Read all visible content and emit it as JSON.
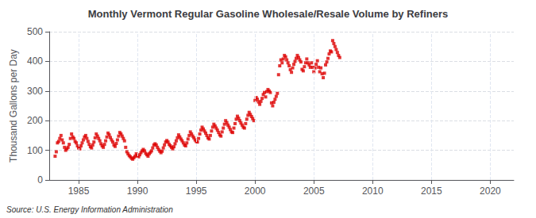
{
  "chart_data": {
    "type": "scatter",
    "title": "Monthly Vermont Regular Gasoline Wholesale/Resale Volume by Refiners",
    "ylabel": "Thousand Gallons per Day",
    "annotations": [
      "Source: U.S. Energy Information Administration"
    ],
    "color": "#dd0000",
    "marker": "square",
    "grid": true,
    "xlim": [
      1982.5,
      2022
    ],
    "ylim": [
      0,
      500
    ],
    "xticks": [
      1985,
      1990,
      1995,
      2000,
      2005,
      2010,
      2015,
      2020
    ],
    "yticks": [
      0,
      100,
      200,
      300,
      400,
      500
    ],
    "x": [
      1983.0,
      1983.1,
      1983.2,
      1983.3,
      1983.4,
      1983.5,
      1983.6,
      1983.7,
      1983.8,
      1983.9,
      1984.0,
      1984.1,
      1984.2,
      1984.3,
      1984.4,
      1984.5,
      1984.6,
      1984.7,
      1984.8,
      1984.9,
      1985.0,
      1985.1,
      1985.2,
      1985.3,
      1985.4,
      1985.5,
      1985.6,
      1985.7,
      1985.8,
      1985.9,
      1986.0,
      1986.1,
      1986.2,
      1986.3,
      1986.4,
      1986.5,
      1986.6,
      1986.7,
      1986.8,
      1986.9,
      1987.0,
      1987.1,
      1987.2,
      1987.3,
      1987.4,
      1987.5,
      1987.6,
      1987.7,
      1987.8,
      1987.9,
      1988.0,
      1988.1,
      1988.2,
      1988.3,
      1988.4,
      1988.5,
      1988.6,
      1988.7,
      1988.8,
      1988.9,
      1989.0,
      1989.1,
      1989.2,
      1989.3,
      1989.4,
      1989.5,
      1989.6,
      1989.7,
      1989.8,
      1989.9,
      1990.0,
      1990.1,
      1990.2,
      1990.3,
      1990.4,
      1990.5,
      1990.6,
      1990.7,
      1990.8,
      1990.9,
      1991.0,
      1991.1,
      1991.2,
      1991.3,
      1991.4,
      1991.5,
      1991.6,
      1991.7,
      1991.8,
      1991.9,
      1992.0,
      1992.1,
      1992.2,
      1992.3,
      1992.4,
      1992.5,
      1992.6,
      1992.7,
      1992.8,
      1992.9,
      1993.0,
      1993.1,
      1993.2,
      1993.3,
      1993.4,
      1993.5,
      1993.6,
      1993.7,
      1993.8,
      1993.9,
      1994.0,
      1994.1,
      1994.2,
      1994.3,
      1994.4,
      1994.5,
      1994.6,
      1994.7,
      1994.8,
      1994.9,
      1995.0,
      1995.1,
      1995.2,
      1995.3,
      1995.4,
      1995.5,
      1995.6,
      1995.7,
      1995.8,
      1995.9,
      1996.0,
      1996.1,
      1996.2,
      1996.3,
      1996.4,
      1996.5,
      1996.6,
      1996.7,
      1996.8,
      1996.9,
      1997.0,
      1997.1,
      1997.2,
      1997.3,
      1997.4,
      1997.5,
      1997.6,
      1997.7,
      1997.8,
      1997.9,
      1998.0,
      1998.1,
      1998.2,
      1998.3,
      1998.4,
      1998.5,
      1998.6,
      1998.7,
      1998.8,
      1998.9,
      1999.0,
      1999.1,
      1999.2,
      1999.3,
      1999.4,
      1999.5,
      1999.6,
      1999.7,
      1999.8,
      1999.9,
      2000.0,
      2000.1,
      2000.2,
      2000.3,
      2000.4,
      2000.5,
      2000.6,
      2000.7,
      2000.8,
      2000.9,
      2001.0,
      2001.1,
      2001.2,
      2001.3,
      2001.4,
      2001.5,
      2001.6,
      2001.7,
      2001.8,
      2001.9,
      2002.0,
      2002.1,
      2002.2,
      2002.3,
      2002.4,
      2002.5,
      2002.6,
      2002.7,
      2002.8,
      2002.9,
      2003.0,
      2003.1,
      2003.2,
      2003.3,
      2003.4,
      2003.5,
      2003.6,
      2003.7,
      2003.8,
      2003.9,
      2004.0,
      2004.1,
      2004.2,
      2004.3,
      2004.4,
      2004.5,
      2004.6,
      2004.7,
      2004.8,
      2004.9,
      2005.0,
      2005.1,
      2005.2,
      2005.3,
      2005.4,
      2005.5,
      2005.6,
      2005.7,
      2005.8,
      2005.9,
      2006.0,
      2006.1,
      2006.2,
      2006.3,
      2006.4,
      2006.5,
      2006.6,
      2006.7,
      2006.8,
      2006.9,
      2007.0,
      2007.1,
      2007.2
    ],
    "values": [
      80,
      95,
      125,
      130,
      140,
      150,
      135,
      125,
      110,
      100,
      105,
      110,
      120,
      140,
      155,
      145,
      140,
      130,
      125,
      115,
      108,
      105,
      115,
      125,
      135,
      145,
      150,
      140,
      130,
      120,
      112,
      108,
      118,
      128,
      142,
      155,
      148,
      140,
      132,
      122,
      115,
      110,
      120,
      132,
      145,
      158,
      152,
      143,
      135,
      128,
      118,
      113,
      123,
      135,
      148,
      160,
      155,
      148,
      140,
      132,
      110,
      95,
      88,
      82,
      78,
      73,
      70,
      75,
      80,
      88,
      82,
      78,
      85,
      92,
      98,
      103,
      98,
      90,
      85,
      80,
      88,
      93,
      98,
      108,
      118,
      122,
      118,
      110,
      103,
      97,
      92,
      97,
      108,
      118,
      128,
      133,
      128,
      120,
      115,
      110,
      105,
      112,
      122,
      132,
      142,
      152,
      145,
      138,
      132,
      125,
      118,
      115,
      125,
      138,
      150,
      162,
      155,
      148,
      142,
      135,
      130,
      128,
      140,
      155,
      168,
      178,
      172,
      165,
      158,
      150,
      142,
      138,
      150,
      165,
      178,
      188,
      182,
      175,
      168,
      160,
      152,
      148,
      162,
      175,
      188,
      200,
      193,
      185,
      178,
      170,
      162,
      160,
      175,
      190,
      205,
      215,
      208,
      200,
      192,
      185,
      178,
      175,
      190,
      205,
      218,
      228,
      221,
      214,
      207,
      200,
      268,
      278,
      272,
      263,
      255,
      265,
      275,
      288,
      295,
      280,
      298,
      305,
      300,
      295,
      260,
      250,
      262,
      272,
      282,
      292,
      355,
      385,
      405,
      395,
      408,
      420,
      415,
      405,
      395,
      385,
      372,
      363,
      378,
      390,
      400,
      410,
      420,
      413,
      405,
      398,
      373,
      368,
      382,
      395,
      408,
      395,
      388,
      380,
      395,
      380,
      365,
      378,
      390,
      402,
      380,
      365,
      378,
      358,
      345,
      360,
      388,
      398,
      410,
      425,
      435,
      432,
      470,
      460,
      450,
      440,
      430,
      420,
      413
    ]
  }
}
